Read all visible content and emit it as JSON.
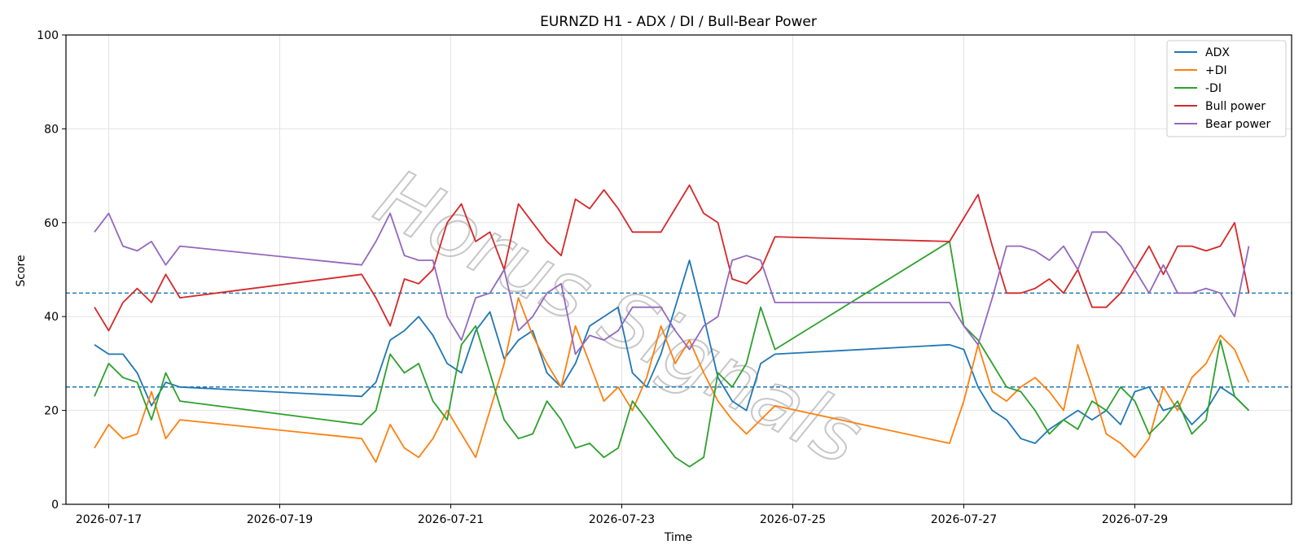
{
  "chart_data": {
    "type": "line",
    "title": "EURNZD H1 - ADX / DI / Bull-Bear Power",
    "xlabel": "Time",
    "ylabel": "Score",
    "ylim": [
      0,
      100
    ],
    "yticks": [
      0,
      20,
      40,
      60,
      80,
      100
    ],
    "xlim": [
      "2026-07-16 12:00",
      "2026-07-30 20:00"
    ],
    "xticks": [
      "2026-07-17",
      "2026-07-19",
      "2026-07-21",
      "2026-07-23",
      "2026-07-25",
      "2026-07-27",
      "2026-07-29"
    ],
    "grid": true,
    "legend_position": "top-right",
    "reference_lines": [
      45,
      25
    ],
    "watermark": "Horus Signals",
    "x": [
      "2026-07-16 20:00",
      "2026-07-17 00:00",
      "2026-07-17 04:00",
      "2026-07-17 08:00",
      "2026-07-17 12:00",
      "2026-07-17 16:00",
      "2026-07-17 20:00",
      "2026-07-19 23:00",
      "2026-07-20 03:00",
      "2026-07-20 07:00",
      "2026-07-20 11:00",
      "2026-07-20 15:00",
      "2026-07-20 19:00",
      "2026-07-20 23:00",
      "2026-07-21 03:00",
      "2026-07-21 07:00",
      "2026-07-21 11:00",
      "2026-07-21 15:00",
      "2026-07-21 19:00",
      "2026-07-21 23:00",
      "2026-07-22 03:00",
      "2026-07-22 07:00",
      "2026-07-22 11:00",
      "2026-07-22 15:00",
      "2026-07-22 19:00",
      "2026-07-22 23:00",
      "2026-07-23 03:00",
      "2026-07-23 07:00",
      "2026-07-23 11:00",
      "2026-07-23 15:00",
      "2026-07-23 19:00",
      "2026-07-23 23:00",
      "2026-07-24 03:00",
      "2026-07-24 07:00",
      "2026-07-24 11:00",
      "2026-07-24 15:00",
      "2026-07-24 19:00",
      "2026-07-26 20:00",
      "2026-07-27 00:00",
      "2026-07-27 04:00",
      "2026-07-27 08:00",
      "2026-07-27 12:00",
      "2026-07-27 16:00",
      "2026-07-27 20:00",
      "2026-07-28 00:00",
      "2026-07-28 04:00",
      "2026-07-28 08:00",
      "2026-07-28 12:00",
      "2026-07-28 16:00",
      "2026-07-28 20:00",
      "2026-07-29 00:00",
      "2026-07-29 04:00",
      "2026-07-29 08:00",
      "2026-07-29 12:00",
      "2026-07-29 16:00",
      "2026-07-29 20:00",
      "2026-07-30 00:00",
      "2026-07-30 04:00",
      "2026-07-30 08:00"
    ],
    "series": [
      {
        "name": "ADX",
        "color": "#1f77b4",
        "values": [
          34,
          32,
          32,
          28,
          21,
          26,
          25,
          23,
          26,
          35,
          37,
          40,
          36,
          30,
          28,
          37,
          41,
          31,
          35,
          37,
          28,
          25,
          30,
          38,
          40,
          42,
          28,
          25,
          32,
          42,
          52,
          40,
          27,
          22,
          20,
          30,
          32,
          34,
          33,
          25,
          20,
          18,
          14,
          13,
          16,
          18,
          20,
          18,
          20,
          17,
          24,
          25,
          20,
          21,
          17,
          20,
          25,
          23,
          20
        ]
      },
      {
        "name": "+DI",
        "color": "#ff7f0e",
        "values": [
          12,
          17,
          14,
          15,
          24,
          14,
          18,
          14,
          9,
          17,
          12,
          10,
          14,
          20,
          15,
          10,
          20,
          30,
          44,
          36,
          30,
          25,
          38,
          30,
          22,
          25,
          20,
          27,
          38,
          30,
          35,
          28,
          22,
          18,
          15,
          18,
          21,
          13,
          22,
          34,
          24,
          22,
          25,
          27,
          24,
          20,
          34,
          25,
          15,
          13,
          10,
          14,
          25,
          20,
          27,
          30,
          36,
          33,
          26
        ]
      },
      {
        "name": "-DI",
        "color": "#2ca02c",
        "values": [
          23,
          30,
          27,
          26,
          18,
          28,
          22,
          17,
          20,
          32,
          28,
          30,
          22,
          18,
          34,
          38,
          28,
          18,
          14,
          15,
          22,
          18,
          12,
          13,
          10,
          12,
          22,
          18,
          14,
          10,
          8,
          10,
          28,
          25,
          30,
          42,
          33,
          56,
          38,
          35,
          30,
          25,
          24,
          20,
          15,
          18,
          16,
          22,
          20,
          25,
          22,
          15,
          18,
          22,
          15,
          18,
          35,
          23,
          20
        ]
      },
      {
        "name": "Bull power",
        "color": "#d62728",
        "values": [
          42,
          37,
          43,
          46,
          43,
          49,
          44,
          49,
          44,
          38,
          48,
          47,
          50,
          60,
          64,
          56,
          58,
          50,
          64,
          60,
          56,
          53,
          65,
          63,
          67,
          63,
          58,
          58,
          58,
          63,
          68,
          62,
          60,
          48,
          47,
          50,
          57,
          56,
          61,
          66,
          55,
          45,
          45,
          46,
          48,
          45,
          50,
          42,
          42,
          45,
          50,
          55,
          49,
          55,
          55,
          54,
          55,
          60,
          45
        ]
      },
      {
        "name": "Bear power",
        "color": "#9467bd",
        "values": [
          58,
          62,
          55,
          54,
          56,
          51,
          55,
          51,
          56,
          62,
          53,
          52,
          52,
          40,
          35,
          44,
          45,
          50,
          37,
          40,
          45,
          47,
          32,
          36,
          35,
          37,
          42,
          42,
          42,
          37,
          33,
          38,
          40,
          52,
          53,
          52,
          43,
          43,
          38,
          34,
          44,
          55,
          55,
          54,
          52,
          55,
          50,
          58,
          58,
          55,
          50,
          45,
          51,
          45,
          45,
          46,
          45,
          40,
          55
        ]
      }
    ]
  }
}
